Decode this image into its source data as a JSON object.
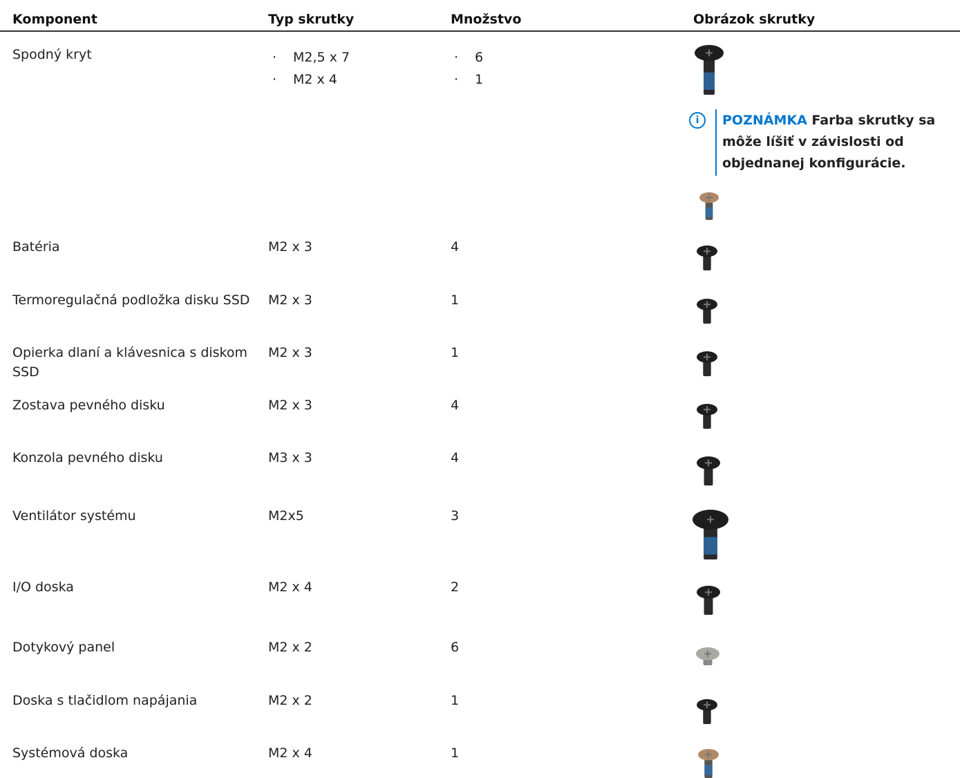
{
  "table": {
    "headers": [
      "Komponent",
      "Typ skrutky",
      "Množstvo",
      "Obrázok skrutky"
    ],
    "rows": [
      {
        "component": "Spodný kryt",
        "screw_types": [
          "M2,5 x 7",
          "M2 x 4"
        ],
        "quantities": [
          6,
          1
        ],
        "note": {
          "label": "POZNÁMKA",
          "text": "Farba skrutky sa môže líšiť v závislosti od objednanej konfigurácie."
        }
      },
      {
        "component": "Batéria",
        "screw_type": "M2 x 3",
        "quantity": 4
      },
      {
        "component": "Termoregulačná podložka disku SSD",
        "screw_type": "M2 x 3",
        "quantity": 1
      },
      {
        "component": "Opierka dlaní a klávesnica s diskom SSD",
        "screw_type": "M2 x 3",
        "quantity": 1
      },
      {
        "component": "Zostava pevného disku",
        "screw_type": "M2 x 3",
        "quantity": 4
      },
      {
        "component": "Konzola pevného disku",
        "screw_type": "M3 x 3",
        "quantity": 4
      },
      {
        "component": "Ventilátor systému",
        "screw_type": "M2x5",
        "quantity": 3
      },
      {
        "component": "I/O doska",
        "screw_type": "M2 x 4",
        "quantity": 2
      },
      {
        "component": "Dotykový panel",
        "screw_type": "M2 x 2",
        "quantity": 6
      },
      {
        "component": "Doska s tlačidlom napájania",
        "screw_type": "M2 x 2",
        "quantity": 1
      },
      {
        "component": "Systémová doska",
        "screw_type": "M2 x 4",
        "quantity": 1
      }
    ]
  }
}
